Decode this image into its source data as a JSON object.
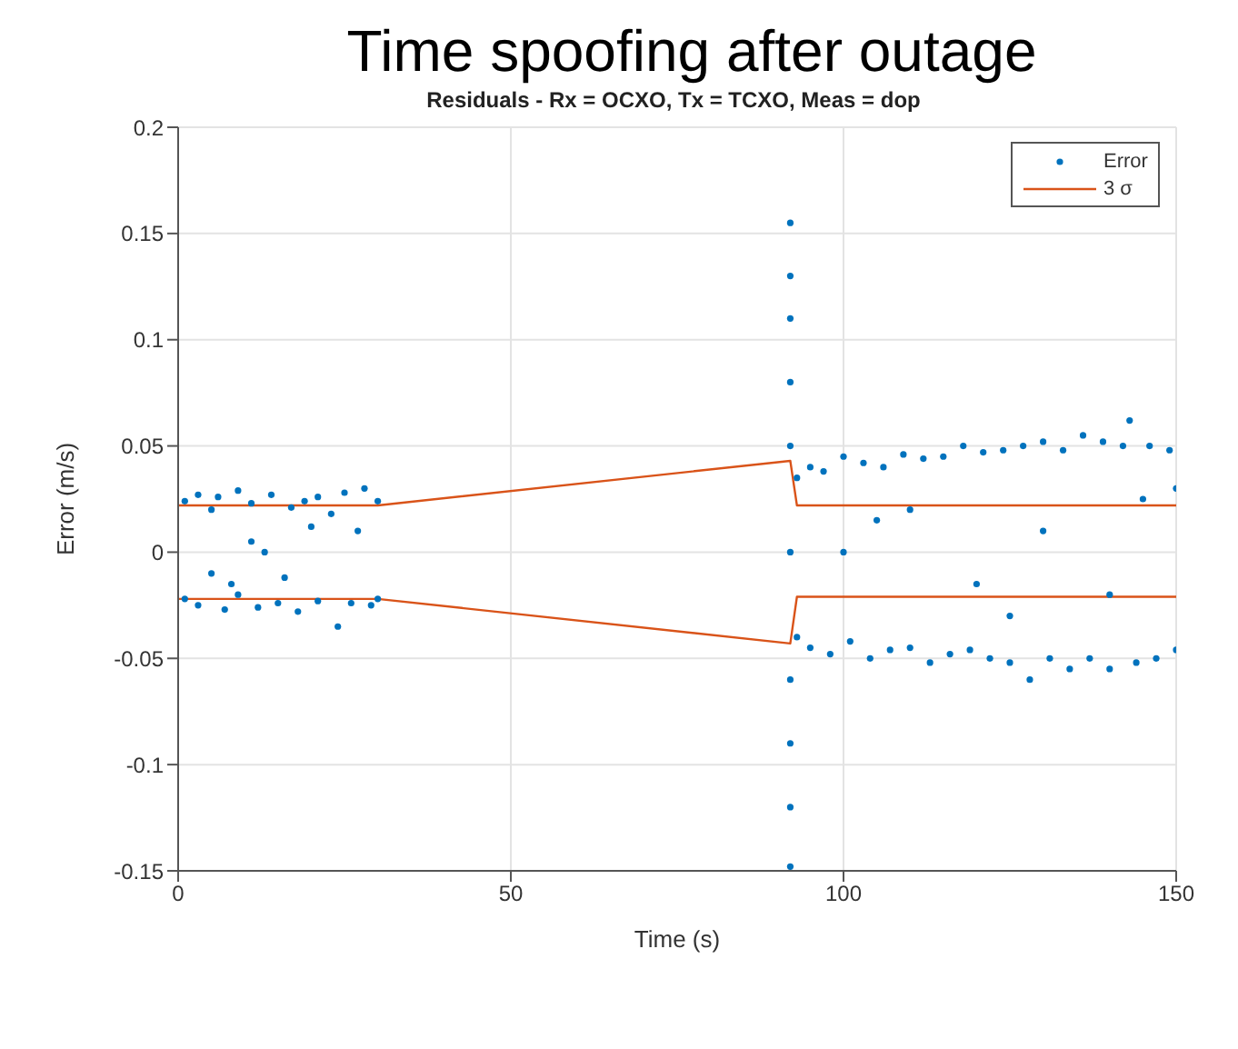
{
  "chart_data": {
    "type": "scatter",
    "title": "Time spoofing after outage",
    "subtitle": "Residuals - Rx = OCXO, Tx = TCXO, Meas = dop",
    "xlabel": "Time (s)",
    "ylabel": "Error (m/s)",
    "xlim": [
      0,
      150
    ],
    "xticks": [
      0,
      50,
      100,
      150
    ],
    "ylim": [
      -0.15,
      0.2
    ],
    "yticks": [
      -0.15,
      -0.1,
      -0.05,
      0,
      0.05,
      0.1,
      0.15,
      0.2
    ],
    "grid": true,
    "legend": "top right",
    "marker": "circle",
    "series": [
      {
        "name": "Error",
        "type": "scatter",
        "color": "#0072bd",
        "x": [
          1,
          1,
          3,
          3,
          5,
          5,
          6,
          7,
          9,
          9,
          11,
          11,
          12,
          14,
          15,
          16,
          17,
          18,
          19,
          21,
          21,
          23,
          24,
          25,
          26,
          27,
          28,
          29,
          30,
          30,
          13,
          20,
          8,
          92,
          92,
          92,
          92,
          92,
          92,
          92,
          92,
          92,
          92,
          93,
          93,
          95,
          95,
          97,
          98,
          100,
          101,
          103,
          104,
          106,
          107,
          109,
          110,
          112,
          113,
          115,
          116,
          118,
          119,
          121,
          122,
          124,
          125,
          127,
          128,
          130,
          131,
          133,
          134,
          136,
          137,
          139,
          140,
          142,
          143,
          144,
          146,
          147,
          149,
          150,
          100,
          110,
          120,
          130,
          140,
          150,
          105,
          125,
          145
        ],
        "values": [
          0.024,
          -0.022,
          0.027,
          -0.025,
          0.02,
          -0.01,
          0.026,
          -0.027,
          0.029,
          -0.02,
          0.023,
          0.005,
          -0.026,
          0.027,
          -0.024,
          -0.012,
          0.021,
          -0.028,
          0.024,
          0.026,
          -0.023,
          0.018,
          -0.035,
          0.028,
          -0.024,
          0.01,
          0.03,
          -0.025,
          0.024,
          -0.022,
          0,
          0.012,
          -0.015,
          0.155,
          0.13,
          0.11,
          0.08,
          0.05,
          -0.06,
          -0.09,
          -0.12,
          -0.148,
          0,
          0.035,
          -0.04,
          0.04,
          -0.045,
          0.038,
          -0.048,
          0.045,
          -0.042,
          0.042,
          -0.05,
          0.04,
          -0.046,
          0.046,
          -0.045,
          0.044,
          -0.052,
          0.045,
          -0.048,
          0.05,
          -0.046,
          0.047,
          -0.05,
          0.048,
          -0.052,
          0.05,
          -0.06,
          0.052,
          -0.05,
          0.048,
          -0.055,
          0.055,
          -0.05,
          0.052,
          -0.055,
          0.05,
          0.062,
          -0.052,
          0.05,
          -0.05,
          0.048,
          -0.046,
          0,
          0.02,
          -0.015,
          0.01,
          -0.02,
          0.03,
          0.015,
          -0.03,
          0.025
        ]
      },
      {
        "name": "3 σ",
        "type": "line",
        "color": "#d95319",
        "line_style": "solid",
        "marker": "none",
        "x": [
          0,
          30,
          92,
          93,
          150
        ],
        "values": [
          0.022,
          0.022,
          0.043,
          0.022,
          0.022
        ]
      },
      {
        "type": "line",
        "color": "#d95319",
        "line_style": "solid",
        "marker": "none",
        "x": [
          0,
          30,
          92,
          93,
          150
        ],
        "values": [
          -0.022,
          -0.022,
          -0.043,
          -0.021,
          -0.021
        ]
      }
    ]
  }
}
